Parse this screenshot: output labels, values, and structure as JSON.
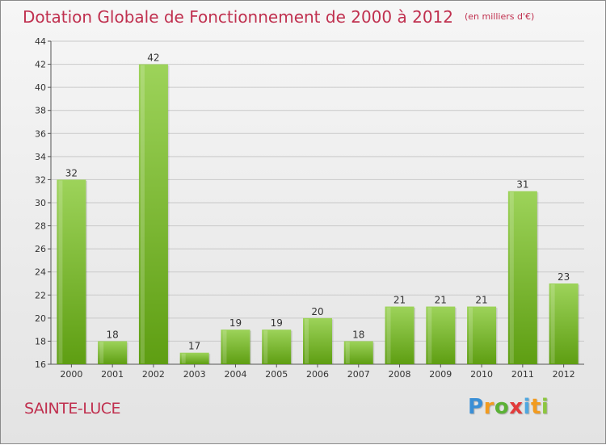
{
  "title": "Dotation Globale de Fonctionnement de 2000 à 2012",
  "unit": "(en milliers d'€)",
  "commune": "SAINTE-LUCE",
  "logo": {
    "letters": [
      "P",
      "r",
      "o",
      "x",
      "i",
      "t",
      "i"
    ]
  },
  "colors": {
    "title": "#c0304f",
    "bar_light": "#9dd35a",
    "bar_dark": "#5e9e12",
    "axis": "#555555"
  },
  "chart_data": {
    "type": "bar",
    "title": "Dotation Globale de Fonctionnement de 2000 à 2012",
    "xlabel": "",
    "ylabel": "(en milliers d'€)",
    "categories": [
      "2000",
      "2001",
      "2002",
      "2003",
      "2004",
      "2005",
      "2006",
      "2007",
      "2008",
      "2009",
      "2010",
      "2011",
      "2012"
    ],
    "values": [
      32,
      18,
      42,
      17,
      19,
      19,
      20,
      18,
      21,
      21,
      21,
      31,
      23
    ],
    "ylim": [
      16,
      44
    ],
    "yticks": [
      16,
      18,
      20,
      22,
      24,
      26,
      28,
      30,
      32,
      34,
      36,
      38,
      40,
      42,
      44
    ],
    "grid": true
  }
}
